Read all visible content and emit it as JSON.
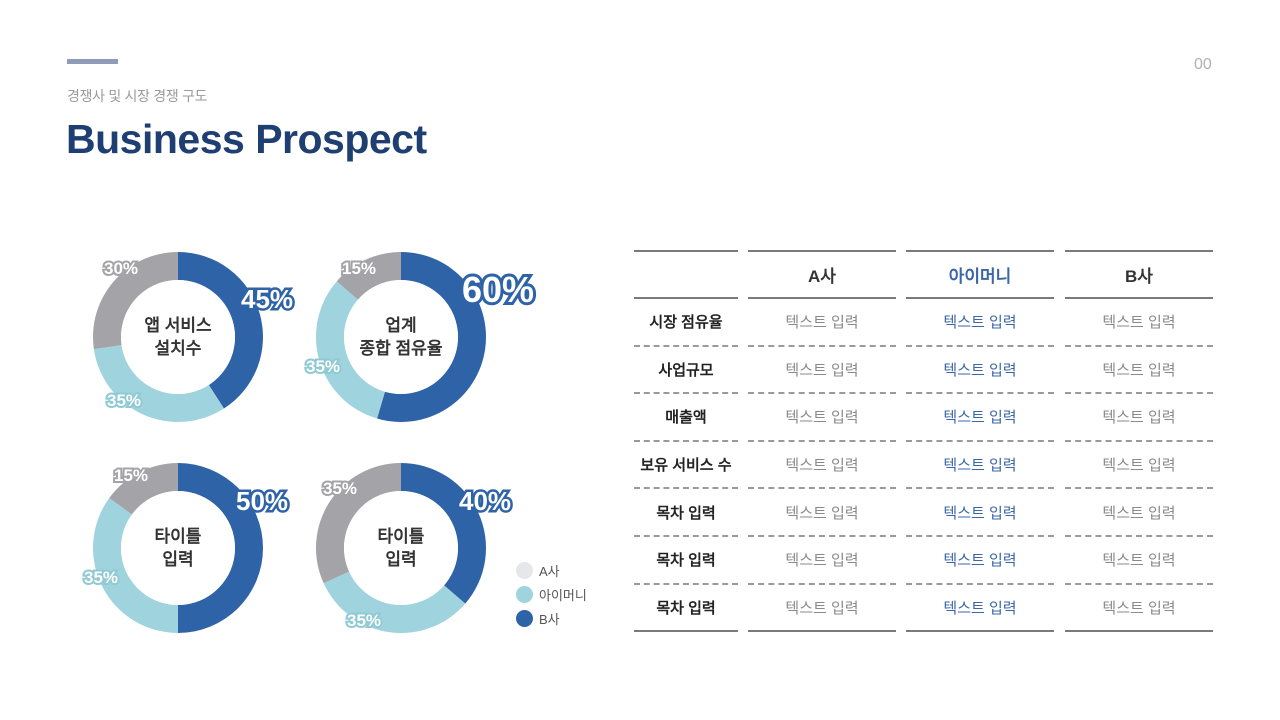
{
  "header": {
    "subtitle": "경쟁사 및 시장 경쟁 구도",
    "title": "Business Prospect",
    "page_number": "00"
  },
  "colors": {
    "a_company": "#a4a4a8",
    "imoney": "#9fd4de",
    "b_company": "#2f63a8",
    "title": "#1f3f73",
    "accent_bar": "#8f9bb8",
    "highlight_text": "#3b67a6"
  },
  "donuts": [
    {
      "label": "앱 서비스\n설치수",
      "a": "30%",
      "imoney": "35%",
      "b": "45%"
    },
    {
      "label": "업계\n종합 점유율",
      "a": "15%",
      "imoney": "35%",
      "b": "60%"
    },
    {
      "label": "타이틀\n입력",
      "a": "15%",
      "imoney": "35%",
      "b": "50%"
    },
    {
      "label": "타이틀\n입력",
      "a": "35%",
      "imoney": "35%",
      "b": "40%"
    }
  ],
  "legend": {
    "items": [
      {
        "label": "A사",
        "color": "#e6e7ea"
      },
      {
        "label": "아이머니",
        "color": "#9fd4de"
      },
      {
        "label": "B사",
        "color": "#2f63a8"
      }
    ]
  },
  "table": {
    "headers": [
      "",
      "A사",
      "아이머니",
      "B사"
    ],
    "rows": [
      {
        "label": "시장 점유율",
        "a": "텍스트 입력",
        "imoney": "텍스트 입력",
        "b": "텍스트 입력"
      },
      {
        "label": "사업규모",
        "a": "텍스트 입력",
        "imoney": "텍스트 입력",
        "b": "텍스트 입력"
      },
      {
        "label": "매출액",
        "a": "텍스트 입력",
        "imoney": "텍스트 입력",
        "b": "텍스트 입력"
      },
      {
        "label": "보유 서비스 수",
        "a": "텍스트 입력",
        "imoney": "텍스트 입력",
        "b": "텍스트 입력"
      },
      {
        "label": "목차 입력",
        "a": "텍스트 입력",
        "imoney": "텍스트 입력",
        "b": "텍스트 입력"
      },
      {
        "label": "목차 입력",
        "a": "텍스트 입력",
        "imoney": "텍스트 입력",
        "b": "텍스트 입력"
      },
      {
        "label": "목차 입력",
        "a": "텍스트 입력",
        "imoney": "텍스트 입력",
        "b": "텍스트 입력"
      }
    ]
  },
  "chart_data": [
    {
      "type": "pie",
      "title": "앱 서비스 설치수",
      "categories": [
        "B사",
        "아이머니",
        "A사"
      ],
      "values": [
        45,
        35,
        30
      ],
      "unit": "%"
    },
    {
      "type": "pie",
      "title": "업계 종합 점유율",
      "categories": [
        "B사",
        "아이머니",
        "A사"
      ],
      "values": [
        60,
        35,
        15
      ],
      "unit": "%"
    },
    {
      "type": "pie",
      "title": "타이틀 입력",
      "categories": [
        "B사",
        "아이머니",
        "A사"
      ],
      "values": [
        50,
        35,
        15
      ],
      "unit": "%"
    },
    {
      "type": "pie",
      "title": "타이틀 입력",
      "categories": [
        "B사",
        "아이머니",
        "A사"
      ],
      "values": [
        40,
        35,
        35
      ],
      "unit": "%"
    }
  ]
}
